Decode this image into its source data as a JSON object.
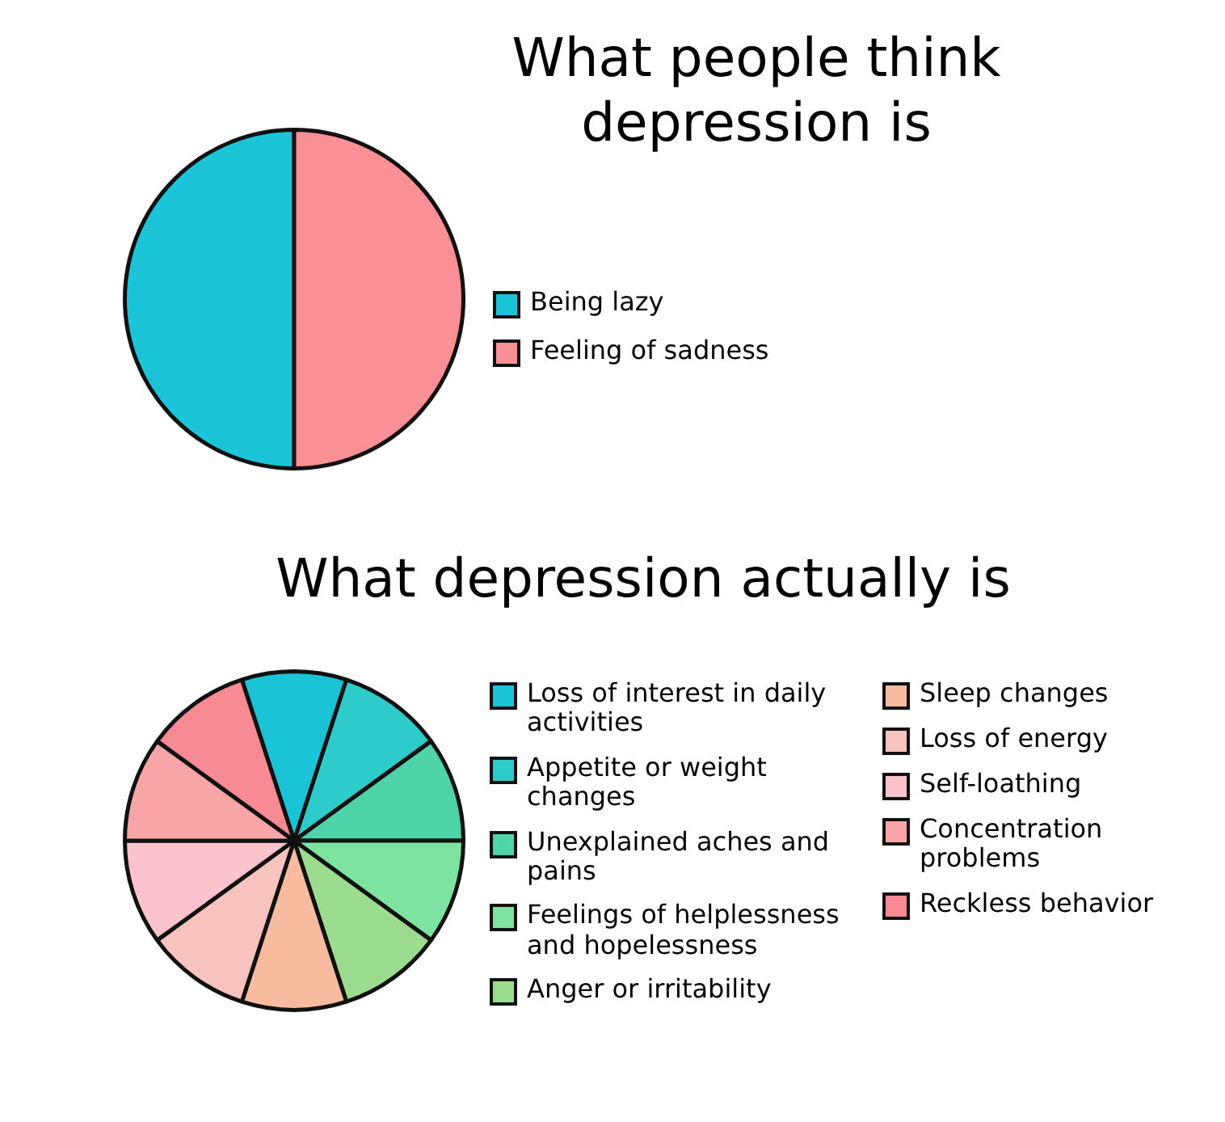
{
  "chart_data": [
    {
      "type": "pie",
      "title": "What people think depression is",
      "categories": [
        "Being lazy",
        "Feeling of sadness"
      ],
      "values": [
        50,
        50
      ],
      "colors": [
        "#1cc4d8",
        "#fa8f96"
      ],
      "legend": "right"
    },
    {
      "type": "pie",
      "title": "What depression actually is",
      "categories": [
        "Loss of interest in daily activities",
        "Appetite or weight changes",
        "Unexplained aches and pains",
        "Feelings of helplessness and hopelessness",
        "Anger or irritability",
        "Sleep changes",
        "Loss of energy",
        "Self-loathing",
        "Concentration problems",
        "Reckless behavior"
      ],
      "values": [
        10,
        10,
        10,
        10,
        10,
        10,
        10,
        10,
        10,
        10
      ],
      "colors": [
        "#1ac3d6",
        "#2dcbc9",
        "#4fd3a8",
        "#7de3a0",
        "#9cdc8e",
        "#f7bca0",
        "#f9c3bd",
        "#fbc3cb",
        "#f8a5a8",
        "#f78a92"
      ],
      "legend": "right"
    }
  ]
}
